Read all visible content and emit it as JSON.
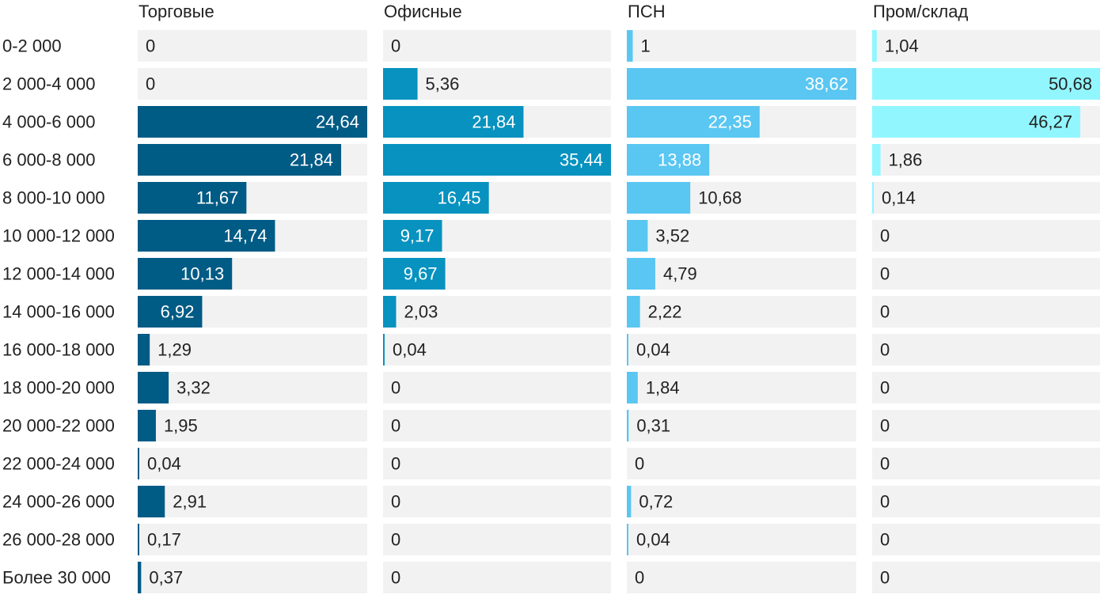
{
  "chart_data": {
    "type": "bar",
    "orientation": "horizontal",
    "layout": "small-multiples",
    "categories": [
      "0-2 000",
      "2 000-4 000",
      "4 000-6 000",
      "6 000-8 000",
      "8 000-10 000",
      "10 000-12 000",
      "12 000-14 000",
      "14 000-16 000",
      "16 000-18 000",
      "18 000-20 000",
      "20 000-22 000",
      "22 000-24 000",
      "24 000-26 000",
      "26 000-28 000",
      "Более 30 000"
    ],
    "series": [
      {
        "name": "Торговые",
        "color": "#005b85",
        "values": [
          0,
          0,
          24.64,
          21.84,
          11.67,
          14.74,
          10.13,
          6.92,
          1.29,
          3.32,
          1.95,
          0.04,
          2.91,
          0.17,
          0.37
        ],
        "labels": [
          "0",
          "0",
          "24,64",
          "21,84",
          "11,67",
          "14,74",
          "10,13",
          "6,92",
          "1,29",
          "3,32",
          "1,95",
          "0,04",
          "2,91",
          "0,17",
          "0,37"
        ]
      },
      {
        "name": "Офисные",
        "color": "#0792bf",
        "values": [
          0,
          5.36,
          21.84,
          35.44,
          16.45,
          9.17,
          9.67,
          2.03,
          0.04,
          0,
          0,
          0,
          0,
          0,
          0
        ],
        "labels": [
          "0",
          "5,36",
          "21,84",
          "35,44",
          "16,45",
          "9,17",
          "9,67",
          "2,03",
          "0,04",
          "0",
          "0",
          "0",
          "0",
          "0",
          "0"
        ]
      },
      {
        "name": "ПСН",
        "color": "#5ac6f2",
        "values": [
          1,
          38.62,
          22.35,
          13.88,
          10.68,
          3.52,
          4.79,
          2.22,
          0.04,
          1.84,
          0.31,
          0,
          0.72,
          0.04,
          0
        ],
        "labels": [
          "1",
          "38,62",
          "22,35",
          "13,88",
          "10,68",
          "3,52",
          "4,79",
          "2,22",
          "0,04",
          "1,84",
          "0,31",
          "0",
          "0,72",
          "0,04",
          "0"
        ]
      },
      {
        "name": "Пром/склад",
        "color": "#92f6ff",
        "values": [
          1.04,
          50.68,
          46.27,
          1.86,
          0.14,
          0,
          0,
          0,
          0,
          0,
          0,
          0,
          0,
          0,
          0
        ],
        "labels": [
          "1,04",
          "50,68",
          "46,27",
          "1,86",
          "0,14",
          "0",
          "0",
          "0",
          "0",
          "0",
          "0",
          "0",
          "0",
          "0",
          "0"
        ]
      }
    ],
    "track_color": "#f2f2f2",
    "text_color": "#222222",
    "inside_label_color": "#ffffff",
    "grid": false,
    "legend": "none"
  }
}
